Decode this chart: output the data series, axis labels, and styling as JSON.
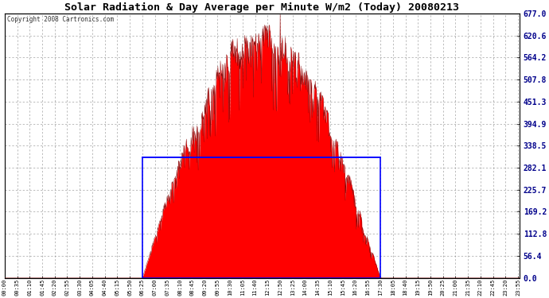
{
  "title": "Solar Radiation & Day Average per Minute W/m2 (Today) 20080213",
  "copyright": "Copyright 2008 Cartronics.com",
  "ymax": 677.0,
  "ymin": 0.0,
  "yticks": [
    0.0,
    56.4,
    112.8,
    169.2,
    225.7,
    282.1,
    338.5,
    394.9,
    451.3,
    507.8,
    564.2,
    620.6,
    677.0
  ],
  "bg_color": "#ffffff",
  "fill_color": "#ff0000",
  "line_color": "#800000",
  "avg_line_color": "#0000ff",
  "avg_box_color": "#0000ff",
  "grid_color": "#888888",
  "axis_color": "#000000",
  "peak_value": 677.0,
  "avg_value": 308.0,
  "sunrise_min": 385,
  "sunset_min": 1050,
  "x_tick_labels": [
    "00:00",
    "00:35",
    "01:10",
    "01:45",
    "02:20",
    "02:55",
    "03:30",
    "04:05",
    "04:40",
    "05:15",
    "05:50",
    "06:25",
    "07:00",
    "07:35",
    "08:10",
    "08:45",
    "09:20",
    "09:55",
    "10:30",
    "11:05",
    "11:40",
    "12:15",
    "12:50",
    "13:25",
    "14:00",
    "14:35",
    "15:10",
    "15:45",
    "16:20",
    "16:55",
    "17:30",
    "18:05",
    "18:40",
    "19:15",
    "19:50",
    "20:25",
    "21:00",
    "21:35",
    "22:10",
    "22:45",
    "23:20",
    "23:55"
  ]
}
